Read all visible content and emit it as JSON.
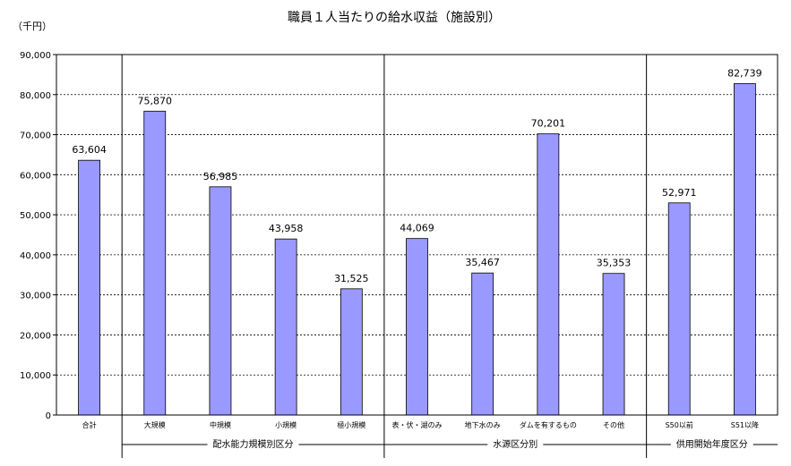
{
  "chart_data": {
    "type": "bar",
    "title": "職員１人当たりの給水収益（施設別）",
    "unit_label": "（千円）",
    "ylim": [
      0,
      90000
    ],
    "yticks": [
      "0",
      "10,000",
      "20,000",
      "30,000",
      "40,000",
      "50,000",
      "60,000",
      "70,000",
      "80,000",
      "90,000"
    ],
    "categories": [
      "合計",
      "大規模",
      "中規模",
      "小規模",
      "極小規模",
      "表・伏・湖のみ",
      "地下水のみ",
      "ダムを有するもの",
      "その他",
      "S50以前",
      "S51以降"
    ],
    "values": [
      63604,
      75870,
      56985,
      43958,
      31525,
      44069,
      35467,
      70201,
      35353,
      52971,
      82739
    ],
    "value_labels": [
      "63,604",
      "75,870",
      "56,985",
      "43,958",
      "31,525",
      "44,069",
      "35,467",
      "70,201",
      "35,353",
      "52,971",
      "82,739"
    ],
    "groups": [
      {
        "label": "配水能力規模別区分",
        "start": 1,
        "end": 4
      },
      {
        "label": "水源区分別",
        "start": 5,
        "end": 8
      },
      {
        "label": "供用開始年度区分",
        "start": 9,
        "end": 10
      }
    ],
    "grid": true,
    "bar_color": "#9999ff",
    "bar_edge_color": "#000000",
    "grid_color": "#000000"
  }
}
